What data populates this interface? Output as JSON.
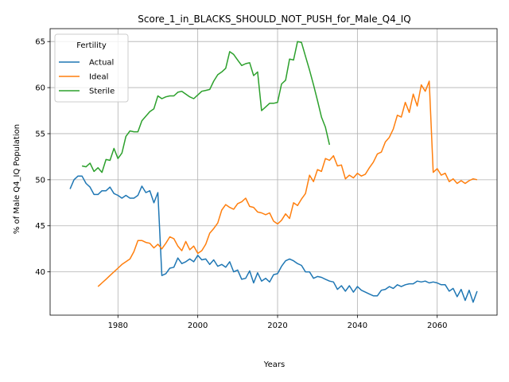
{
  "chart_data": {
    "type": "line",
    "title": "Score_1_in_BLACKS_SHOULD_NOT_PUSH_for_Male_Q4_IQ",
    "xlabel": "Years",
    "ylabel": "% of Male Q4_IQ Population",
    "xlim": [
      1963,
      2075
    ],
    "ylim": [
      35.3,
      66.4
    ],
    "xticks": [
      1980,
      2000,
      2020,
      2040,
      2060
    ],
    "yticks": [
      40,
      45,
      50,
      55,
      60,
      65
    ],
    "grid": true,
    "legend": {
      "title": "Fertility",
      "placement": "top-left"
    },
    "series": [
      {
        "name": "Actual",
        "color": "#1f77b4",
        "x": [
          1968,
          1969,
          1970,
          1971,
          1972,
          1973,
          1974,
          1975,
          1976,
          1977,
          1978,
          1979,
          1980,
          1981,
          1982,
          1983,
          1984,
          1985,
          1986,
          1987,
          1988,
          1989,
          1990,
          1991,
          1992,
          1993,
          1994,
          1995,
          1996,
          1997,
          1998,
          1999,
          2000,
          2001,
          2002,
          2003,
          2004,
          2005,
          2006,
          2007,
          2008,
          2009,
          2010,
          2011,
          2012,
          2013,
          2014,
          2015,
          2016,
          2017,
          2018,
          2019,
          2020,
          2021,
          2022,
          2023,
          2024,
          2025,
          2026,
          2027,
          2028,
          2029,
          2030,
          2031,
          2032,
          2033,
          2034,
          2035,
          2036,
          2037,
          2038,
          2039,
          2040,
          2041,
          2042,
          2043,
          2044,
          2045,
          2046,
          2047,
          2048,
          2049,
          2050,
          2051,
          2052,
          2053,
          2054,
          2055,
          2056,
          2057,
          2058,
          2059,
          2060,
          2061,
          2062,
          2063,
          2064,
          2065,
          2066,
          2067,
          2068,
          2069,
          2070
        ],
        "y": [
          49.0,
          50.0,
          50.4,
          50.4,
          49.6,
          49.2,
          48.4,
          48.4,
          48.8,
          48.8,
          49.2,
          48.5,
          48.3,
          48.0,
          48.3,
          48.0,
          48.0,
          48.3,
          49.3,
          48.6,
          48.8,
          47.5,
          48.6,
          39.6,
          39.8,
          40.4,
          40.5,
          41.5,
          40.9,
          41.1,
          41.4,
          41.1,
          41.8,
          41.3,
          41.4,
          40.8,
          41.3,
          40.6,
          40.8,
          40.5,
          41.1,
          40.0,
          40.2,
          39.2,
          39.3,
          40.1,
          38.8,
          39.9,
          39.0,
          39.3,
          38.9,
          39.7,
          39.8,
          40.6,
          41.2,
          41.4,
          41.2,
          40.9,
          40.7,
          40.0,
          40.0,
          39.3,
          39.5,
          39.4,
          39.2,
          39.0,
          38.9,
          38.1,
          38.5,
          37.9,
          38.5,
          37.8,
          38.4,
          38.0,
          37.8,
          37.6,
          37.4,
          37.4,
          38.0,
          38.1,
          38.4,
          38.2,
          38.6,
          38.4,
          38.6,
          38.7,
          38.7,
          39.0,
          38.9,
          39.0,
          38.8,
          38.9,
          38.8,
          38.6,
          38.6,
          37.9,
          38.2,
          37.3,
          38.1,
          36.9,
          38.0,
          36.7,
          37.9
        ]
      },
      {
        "name": "Ideal",
        "color": "#ff7f0e",
        "x": [
          1975,
          1976,
          1977,
          1978,
          1979,
          1980,
          1981,
          1982,
          1983,
          1984,
          1985,
          1986,
          1987,
          1988,
          1989,
          1990,
          1991,
          1992,
          1993,
          1994,
          1995,
          1996,
          1997,
          1998,
          1999,
          2000,
          2001,
          2002,
          2003,
          2004,
          2005,
          2006,
          2007,
          2008,
          2009,
          2010,
          2011,
          2012,
          2013,
          2014,
          2015,
          2016,
          2017,
          2018,
          2019,
          2020,
          2021,
          2022,
          2023,
          2024,
          2025,
          2026,
          2027,
          2028,
          2029,
          2030,
          2031,
          2032,
          2033,
          2034,
          2035,
          2036,
          2037,
          2038,
          2039,
          2040,
          2041,
          2042,
          2043,
          2044,
          2045,
          2046,
          2047,
          2048,
          2049,
          2050,
          2051,
          2052,
          2053,
          2054,
          2055,
          2056,
          2057,
          2058,
          2059,
          2060,
          2061,
          2062,
          2063,
          2064,
          2065,
          2066,
          2067,
          2068,
          2069,
          2070
        ],
        "y": [
          38.4,
          38.8,
          39.2,
          39.6,
          40.0,
          40.4,
          40.8,
          41.1,
          41.4,
          42.2,
          43.4,
          43.4,
          43.2,
          43.1,
          42.6,
          43.0,
          42.5,
          43.1,
          43.8,
          43.6,
          42.8,
          42.3,
          43.3,
          42.4,
          42.8,
          42.0,
          42.3,
          43.0,
          44.2,
          44.7,
          45.3,
          46.7,
          47.3,
          47.0,
          46.8,
          47.4,
          47.6,
          48.0,
          47.1,
          47.0,
          46.5,
          46.4,
          46.2,
          46.4,
          45.5,
          45.2,
          45.6,
          46.3,
          45.8,
          47.5,
          47.2,
          47.9,
          48.5,
          50.5,
          49.8,
          51.1,
          50.9,
          52.3,
          52.1,
          52.6,
          51.5,
          51.6,
          50.1,
          50.5,
          50.2,
          50.7,
          50.4,
          50.6,
          51.3,
          51.9,
          52.8,
          53.0,
          54.1,
          54.6,
          55.5,
          57.0,
          56.8,
          58.4,
          57.3,
          59.3,
          58.0,
          60.3,
          59.6,
          60.7,
          50.8,
          51.2,
          50.5,
          50.7,
          49.8,
          50.1,
          49.6,
          49.9,
          49.6,
          49.9,
          50.1,
          50.0
        ]
      },
      {
        "name": "Sterile",
        "color": "#2ca02c",
        "x": [
          1971,
          1972,
          1973,
          1974,
          1975,
          1976,
          1977,
          1978,
          1979,
          1980,
          1981,
          1982,
          1983,
          1984,
          1985,
          1986,
          1987,
          1988,
          1989,
          1990,
          1991,
          1992,
          1993,
          1994,
          1995,
          1996,
          1997,
          1998,
          1999,
          2000,
          2001,
          2002,
          2003,
          2004,
          2005,
          2006,
          2007,
          2008,
          2009,
          2010,
          2011,
          2012,
          2013,
          2014,
          2015,
          2016,
          2017,
          2018,
          2019,
          2020,
          2021,
          2022,
          2023,
          2024,
          2025,
          2026,
          2027,
          2028,
          2029,
          2030,
          2031,
          2032,
          2033
        ],
        "y": [
          51.5,
          51.4,
          51.8,
          50.9,
          51.3,
          50.8,
          52.2,
          52.1,
          53.4,
          52.3,
          52.9,
          54.7,
          55.3,
          55.2,
          55.2,
          56.4,
          56.9,
          57.4,
          57.7,
          59.1,
          58.8,
          59.0,
          59.1,
          59.1,
          59.5,
          59.6,
          59.3,
          59.0,
          58.8,
          59.2,
          59.6,
          59.7,
          59.8,
          60.7,
          61.4,
          61.7,
          62.1,
          63.9,
          63.6,
          63.0,
          62.4,
          62.6,
          62.7,
          61.3,
          61.7,
          57.5,
          57.9,
          58.3,
          58.3,
          58.4,
          60.4,
          60.8,
          63.1,
          63.0,
          65.0,
          64.9,
          63.4,
          61.9,
          60.3,
          58.6,
          56.8,
          55.7,
          53.8
        ]
      }
    ]
  }
}
